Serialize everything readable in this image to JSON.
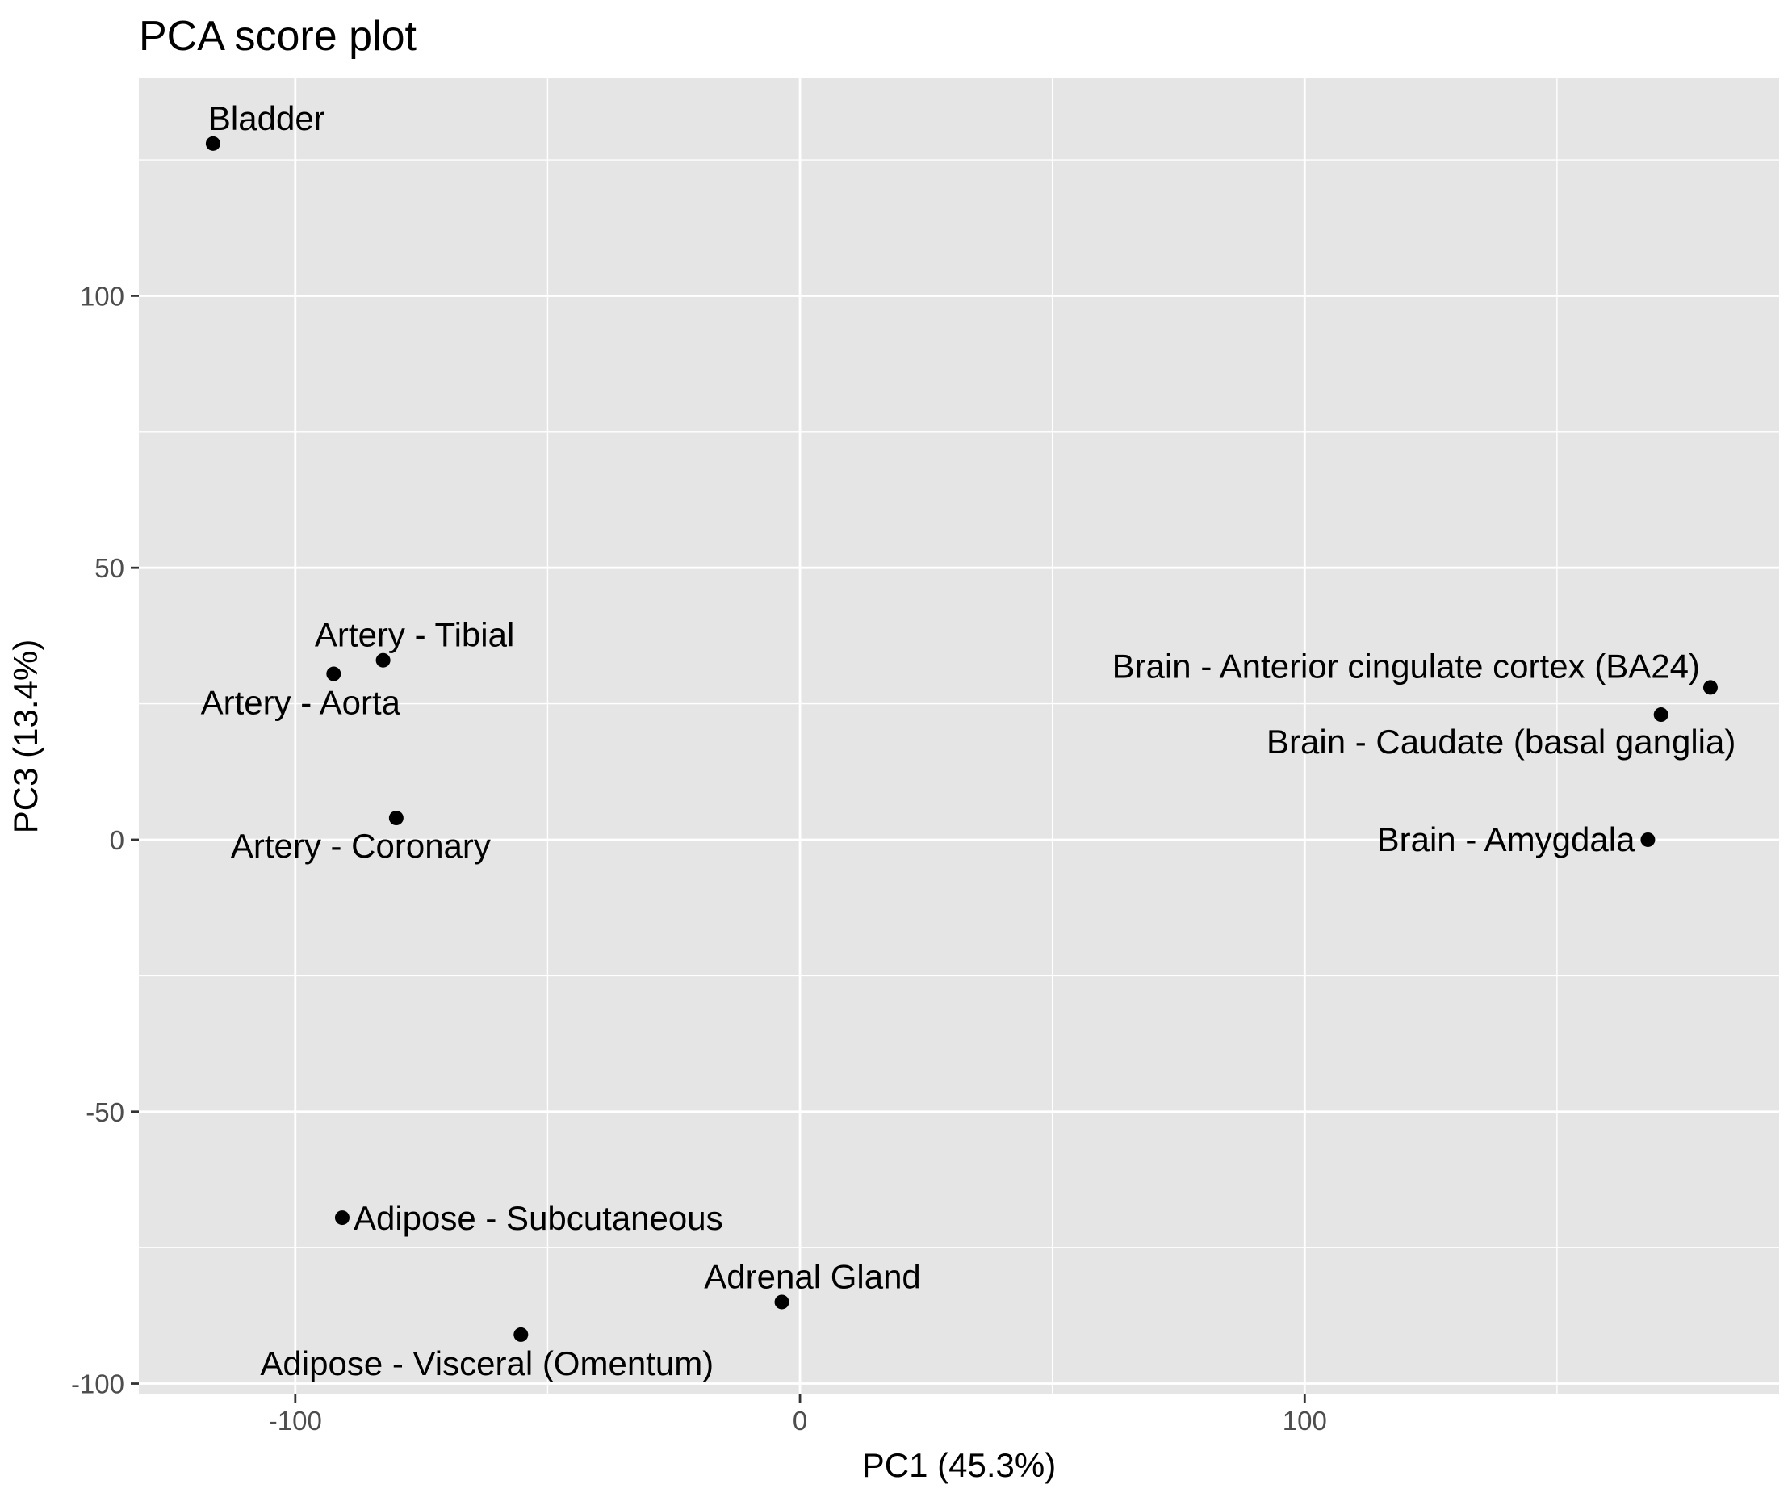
{
  "chart_data": {
    "type": "scatter",
    "title": "PCA score plot",
    "xlabel": "PC1 (45.3%)",
    "ylabel": "PC3 (13.4%)",
    "xlim": [
      -131,
      194
    ],
    "ylim": [
      -102,
      140
    ],
    "x_ticks": [
      -100,
      0,
      100
    ],
    "x_tick_labels": [
      "-100",
      "0",
      "100"
    ],
    "y_ticks": [
      -100,
      -50,
      0,
      50,
      100
    ],
    "y_tick_labels": [
      "-100",
      "-50",
      "0",
      "50",
      "100"
    ],
    "grid": true,
    "legend": "none",
    "colors": {
      "panel_background": "#e5e5e5",
      "grid_line": "#ffffff",
      "point": "#000000"
    },
    "points": [
      {
        "label": "Bladder",
        "x": -116.3,
        "y": 128
      },
      {
        "label": "Artery - Tibial",
        "x": -82.6,
        "y": 33
      },
      {
        "label": "Artery - Aorta",
        "x": -92.4,
        "y": 30.5
      },
      {
        "label": "Artery - Coronary",
        "x": -80,
        "y": 4
      },
      {
        "label": "Adipose - Subcutaneous",
        "x": -90.7,
        "y": -69.5
      },
      {
        "label": "Adipose - Visceral (Omentum)",
        "x": -55.3,
        "y": -91
      },
      {
        "label": "Adrenal Gland",
        "x": -3.6,
        "y": -85
      },
      {
        "label": "Brain - Anterior cingulate cortex (BA24)",
        "x": 180.4,
        "y": 28
      },
      {
        "label": "Brain - Caudate (basal ganglia)",
        "x": 170.6,
        "y": 23
      },
      {
        "label": "Brain - Amygdala",
        "x": 168,
        "y": 0
      }
    ]
  }
}
